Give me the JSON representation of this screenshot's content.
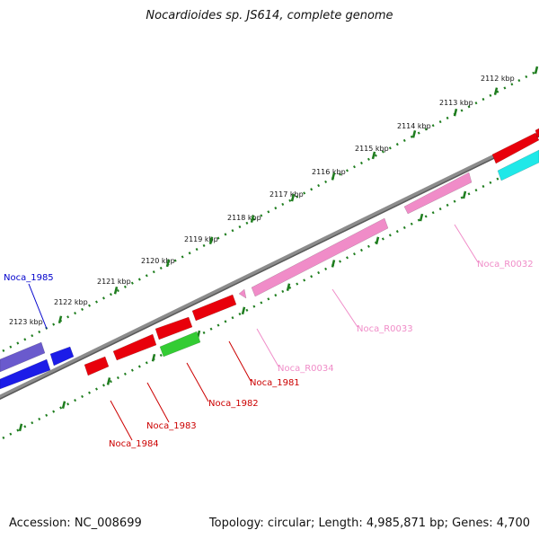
{
  "header": {
    "title": "Nocardioides sp. JS614, complete genome"
  },
  "footer": {
    "accession": "Accession: NC_008699",
    "summary": "Topology: circular; Length: 4,985,871 bp; Genes: 4,700"
  },
  "colors": {
    "backbone": "#8c8c8c",
    "ticks": "#1e7d1e",
    "cds_forward": "#e8000b",
    "cds_reverse_blue": "#1c1ce8",
    "cds_reverse_purple": "#6a5acd",
    "rrna": "#f08cc8",
    "trna": "#20e8e8",
    "pseudo": "#33cc33"
  },
  "tick_labels": [
    "2112 kbp",
    "2113 kbp",
    "2114 kbp",
    "2115 kbp",
    "2116 kbp",
    "2117 kbp",
    "2118 kbp",
    "2119 kbp",
    "2120 kbp",
    "2121 kbp",
    "2122 kbp",
    "2123 kbp"
  ],
  "gene_labels": [
    {
      "text": "Noca_1985",
      "color": "#0000cc"
    },
    {
      "text": "Noca_R0032",
      "color": "#f08cc8"
    },
    {
      "text": "Noca_R0033",
      "color": "#f08cc8"
    },
    {
      "text": "Noca_R0034",
      "color": "#f08cc8"
    },
    {
      "text": "Noca_1981",
      "color": "#cc0000"
    },
    {
      "text": "Noca_1982",
      "color": "#cc0000"
    },
    {
      "text": "Noca_1983",
      "color": "#cc0000"
    },
    {
      "text": "Noca_1984",
      "color": "#cc0000"
    }
  ]
}
